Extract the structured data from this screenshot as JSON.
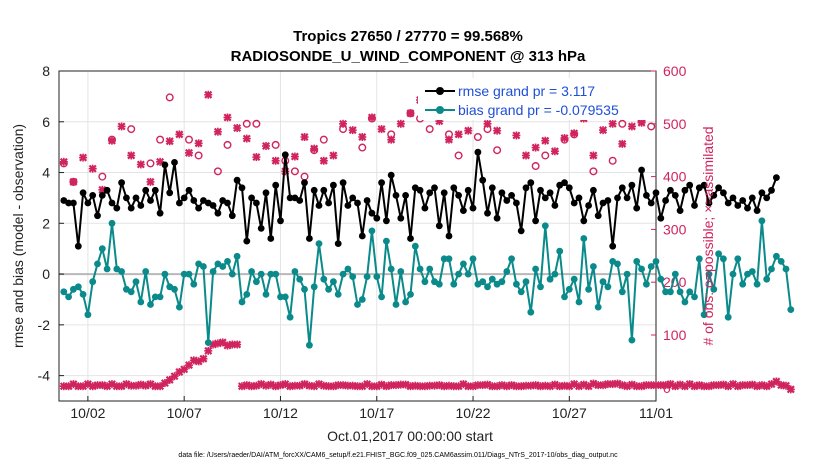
{
  "chart_data": {
    "type": "line",
    "title": "Tropics 27650 / 27770 = 99.568%",
    "subtitle": "RADIOSONDE_U_WIND_COMPONENT @ 313 hPa",
    "xlabel": "Oct.01,2017 00:00:00 start",
    "ylabel": "rmse and bias (model - observation)",
    "y2label": "# of obs: o=possible; ×=assimilated",
    "ylim": [
      -5,
      8
    ],
    "y2lim": [
      -25,
      600
    ],
    "xlim": [
      0.5,
      31.5
    ],
    "yticks": [
      "-4",
      "-2",
      "0",
      "2",
      "4",
      "6",
      "8"
    ],
    "y2ticks": [
      "0",
      "100",
      "200",
      "300",
      "400",
      "500",
      "600"
    ],
    "xticks": [
      {
        "x": 2,
        "label": "10/02"
      },
      {
        "x": 7,
        "label": "10/07"
      },
      {
        "x": 12,
        "label": "10/12"
      },
      {
        "x": 17,
        "label": "10/17"
      },
      {
        "x": 22,
        "label": "10/22"
      },
      {
        "x": 27,
        "label": "10/27"
      },
      {
        "x": 32,
        "label": "11/01"
      }
    ],
    "grid": true,
    "legend_position": "top-right",
    "series": [
      {
        "name": "rmse grand pr = 3.117",
        "color": "#000000",
        "axis": "left",
        "x_start": 0.75,
        "x_step": 0.25,
        "values": [
          2.9,
          2.8,
          2.8,
          1.1,
          3.2,
          2.8,
          3.1,
          2.3,
          3.1,
          3.3,
          2.8,
          2.6,
          3.6,
          3.0,
          2.6,
          3.0,
          2.7,
          3.3,
          2.9,
          3.3,
          2.4,
          4.3,
          3.2,
          4.4,
          2.8,
          3.0,
          3.3,
          2.9,
          2.6,
          2.9,
          2.8,
          2.7,
          2.4,
          2.9,
          2.8,
          2.3,
          3.7,
          3.4,
          1.3,
          3.0,
          2.8,
          1.8,
          3.2,
          1.4,
          3.5,
          2.1,
          4.7,
          3.0,
          3.0,
          2.9,
          3.6,
          1.4,
          3.3,
          2.7,
          3.3,
          2.8,
          3.5,
          1.2,
          3.6,
          2.7,
          3.0,
          2.8,
          1.5,
          2.9,
          2.4,
          2.2,
          3.6,
          2.1,
          3.9,
          3.1,
          2.2,
          3.1,
          1.4,
          3.4,
          3.3,
          2.6,
          3.2,
          3.4,
          1.9,
          3.2,
          1.5,
          3.4,
          3.1,
          2.5,
          3.3,
          2.6,
          4.8,
          3.7,
          2.4,
          3.4,
          2.2,
          3.2,
          2.9,
          3.1,
          2.8,
          1.7,
          3.4,
          3.6,
          2.1,
          3.3,
          3.0,
          3.2,
          2.7,
          3.5,
          3.6,
          3.4,
          2.8,
          3.0,
          2.1,
          2.7,
          3.3,
          2.3,
          2.8,
          2.9,
          1.1,
          3.0,
          3.4,
          3.0,
          3.5,
          2.6,
          4.1,
          3.1,
          2.8,
          3.2,
          2.2,
          2.9,
          3.3,
          3.1,
          2.5,
          3.3,
          3.5,
          2.7,
          3.4,
          3.5,
          2.8,
          3.1,
          3.4,
          3.2,
          2.8,
          3.0,
          2.7,
          2.9,
          2.6,
          3.0,
          2.5,
          3.2,
          3.0,
          3.3,
          3.8
        ]
      },
      {
        "name": "bias grand pr = -0.079535",
        "color": "#0a8a8a",
        "axis": "left",
        "x_start": 0.75,
        "x_step": 0.25,
        "values": [
          -0.7,
          -0.9,
          -0.6,
          -0.5,
          -0.8,
          -1.6,
          -0.3,
          0.4,
          1.0,
          0.2,
          2.0,
          0.2,
          0.1,
          -0.6,
          -0.7,
          -0.3,
          -1.1,
          0.1,
          -1.2,
          -0.9,
          -0.9,
          0.0,
          -0.5,
          -0.6,
          -1.3,
          0.0,
          0.0,
          -0.4,
          0.4,
          0.3,
          -2.7,
          0.1,
          0.4,
          0.3,
          0.5,
          0.0,
          0.7,
          -1.1,
          -0.8,
          0.1,
          -0.3,
          0.0,
          -0.8,
          0.0,
          0.0,
          -0.9,
          -0.9,
          -1.7,
          0.1,
          -0.2,
          -0.6,
          -2.8,
          -0.5,
          1.2,
          -0.2,
          -0.6,
          -0.3,
          -0.8,
          0.0,
          0.2,
          -0.1,
          -1.2,
          -1.0,
          -0.1,
          1.7,
          -0.1,
          -0.9,
          1.3,
          0.2,
          -1.2,
          0.1,
          -1.1,
          -0.8,
          1.1,
          0.2,
          -0.3,
          0.2,
          -0.3,
          -0.4,
          0.6,
          0.6,
          -0.4,
          0.0,
          0.4,
          0.0,
          0.6,
          -0.4,
          -0.3,
          -0.5,
          -0.2,
          -0.4,
          -0.3,
          0.1,
          0.6,
          -0.4,
          -0.7,
          -0.3,
          -1.5,
          0.2,
          -0.5,
          1.9,
          -0.2,
          0.0,
          0.9,
          -0.9,
          -0.6,
          -0.2,
          -1.1,
          1.4,
          -0.6,
          0.3,
          -1.3,
          -0.3,
          -0.5,
          0.5,
          0.4,
          -0.7,
          0.0,
          -2.6,
          0.5,
          0.2,
          -0.4,
          0.3,
          0.5,
          -0.2,
          -0.7,
          -0.7,
          0.0,
          -0.7,
          -1.1,
          -0.7,
          -0.9,
          0.6,
          -1.6,
          0.0,
          -0.6,
          0.8,
          0.6,
          -1.7,
          0.0,
          0.6,
          -0.4,
          0.0,
          0.1,
          -0.4,
          2.1,
          -0.2,
          0.2,
          0.7,
          0.5,
          0.2,
          -1.4
        ]
      }
    ],
    "obs_possible": {
      "name": "possible",
      "color": "#d0245f",
      "x": [
        0.75,
        1.25,
        2.75,
        3.25,
        4.25,
        5.25,
        5.75,
        6.25,
        7.25,
        7.75,
        8.75,
        9.25,
        10.25,
        10.75,
        11.75,
        12.25,
        12.75,
        13.25,
        13.75,
        14.25,
        15.25,
        16.25,
        16.75,
        17.75,
        18.75,
        19.25,
        19.75,
        20.75,
        21.25,
        22.25,
        22.75,
        23.25,
        24.25,
        25.25,
        25.75,
        26.75,
        27.25,
        28.25,
        29.25,
        29.75,
        30.75,
        31.25
      ],
      "values": [
        425,
        390,
        400,
        470,
        490,
        425,
        470,
        550,
        470,
        440,
        410,
        460,
        500,
        500,
        460,
        430,
        410,
        400,
        450,
        470,
        490,
        455,
        510,
        480,
        520,
        510,
        490,
        480,
        440,
        475,
        490,
        450,
        530,
        420,
        440,
        470,
        480,
        410,
        430,
        500,
        505,
        495
      ]
    },
    "obs_assimilated": {
      "name": "assimilated",
      "color": "#d0245f",
      "x_start": 0.75,
      "x_step": 0.5,
      "values": [
        428,
        390,
        436,
        415,
        375,
        468,
        495,
        440,
        423,
        390,
        428,
        467,
        480,
        445,
        463,
        555,
        485,
        512,
        492,
        472,
        437,
        458,
        430,
        410,
        438,
        475,
        453,
        430,
        440,
        500,
        488,
        475,
        512,
        490,
        470,
        500,
        520,
        545,
        522,
        505,
        470,
        480,
        487,
        530,
        500,
        487,
        515,
        478,
        440,
        455,
        468,
        448,
        473,
        482,
        510,
        440,
        488,
        500,
        462,
        495,
        502
      ]
    },
    "obs_counts_low": {
      "name": "low obs count",
      "color": "#d0245f",
      "x_start": 0.75,
      "x_step": 0.25,
      "values": [
        3,
        3,
        7,
        3,
        3,
        7,
        3,
        5,
        5,
        3,
        7,
        3,
        3,
        7,
        4,
        4,
        6,
        4,
        7,
        3,
        3,
        9,
        15,
        22,
        30,
        35,
        43,
        52,
        50,
        55,
        70,
        82,
        84,
        86,
        80,
        82,
        82,
        3,
        5,
        3,
        4,
        7,
        4,
        6,
        3,
        5,
        7,
        3,
        4,
        4,
        7,
        4,
        3,
        7,
        4,
        3,
        3,
        5,
        5,
        4,
        4,
        3,
        3,
        7,
        3,
        3,
        6,
        3,
        5,
        5,
        6,
        6,
        3,
        4,
        3,
        3,
        4,
        4,
        5,
        3,
        4,
        3,
        3,
        7,
        3,
        3,
        5,
        5,
        6,
        3,
        3,
        5,
        3,
        5,
        3,
        3,
        4,
        4,
        5,
        3,
        4,
        3,
        6,
        3,
        4,
        3,
        7,
        3,
        6,
        3,
        8,
        5,
        5,
        7,
        7,
        8,
        5,
        3,
        6,
        3,
        3,
        5,
        5,
        5,
        5,
        5,
        7,
        3,
        6,
        3,
        7,
        3,
        5,
        3,
        3,
        5,
        5,
        6,
        3,
        7,
        3,
        5,
        5,
        6,
        3,
        5,
        3,
        7,
        12,
        5,
        4,
        -3
      ]
    },
    "annotations": [],
    "footnote": "data file: /Users/raeder/DAI/ATM_forcXX/CAM6_setup/f.e21.FHIST_BGC.f09_025.CAM6assim.011/Diags_NTrS_2017-10/obs_diag_output.nc"
  }
}
